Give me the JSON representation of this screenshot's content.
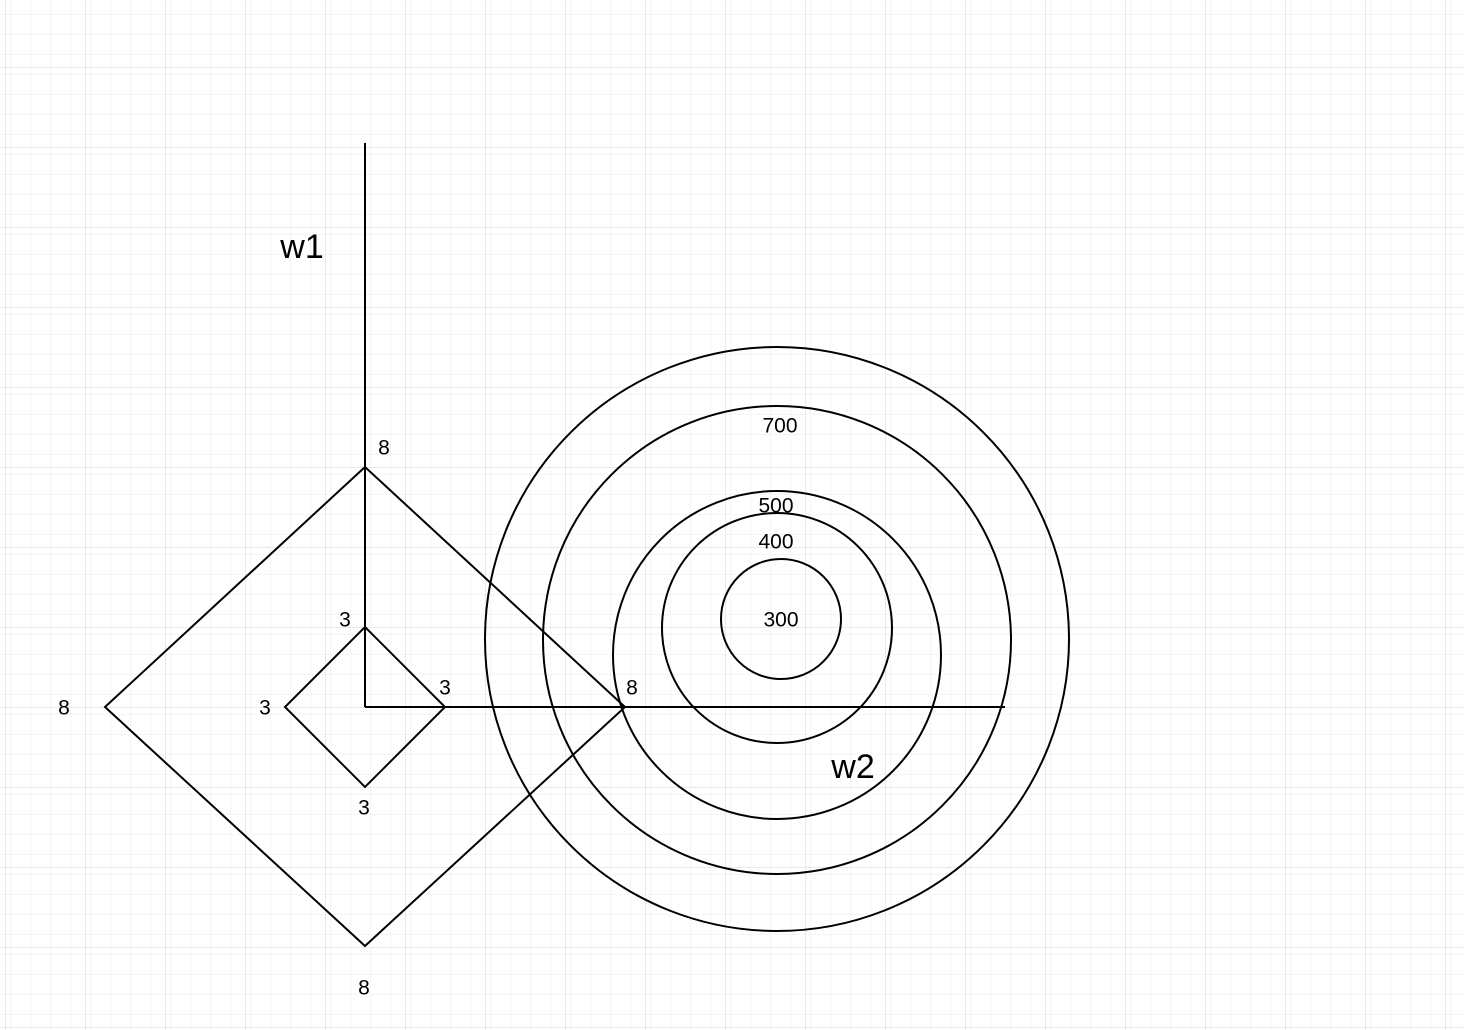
{
  "axes": {
    "vertical_label": "w1",
    "horizontal_label": "w2"
  },
  "diamonds": {
    "outer": {
      "top": "8",
      "left": "8",
      "right": "8",
      "bottom": "8"
    },
    "inner": {
      "top": "3",
      "left": "3",
      "right": "3",
      "bottom": "3"
    }
  },
  "contours": {
    "ring_300": "300",
    "ring_400": "400",
    "ring_500": "500",
    "ring_700": "700"
  },
  "colors": {
    "stroke": "#000000",
    "grid_minor": "#ebebeb",
    "grid_major": "#d4d4d4",
    "background": "#ffffff"
  }
}
